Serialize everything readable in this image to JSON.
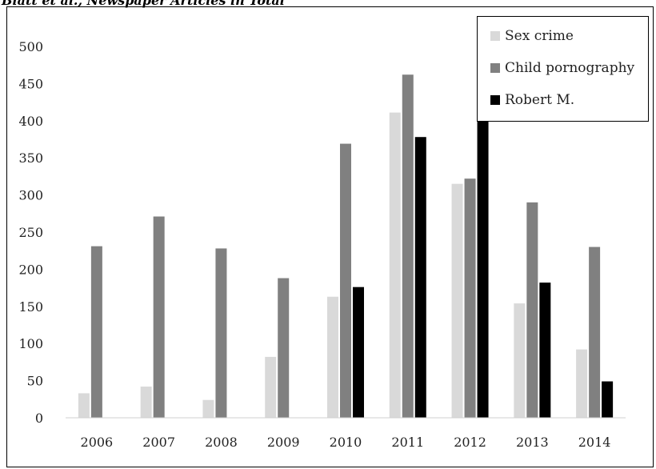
{
  "caption": "Blatt et al., Newspaper Articles in Total",
  "chart_data": {
    "type": "bar",
    "categories": [
      "2006",
      "2007",
      "2008",
      "2009",
      "2010",
      "2011",
      "2012",
      "2013",
      "2014"
    ],
    "series": [
      {
        "name": "Sex crime",
        "color": "#d9d9d9",
        "values": [
          33,
          42,
          24,
          82,
          163,
          411,
          315,
          154,
          92
        ]
      },
      {
        "name": "Child pornography",
        "color": "#808080",
        "values": [
          231,
          271,
          228,
          188,
          369,
          462,
          322,
          290,
          230
        ]
      },
      {
        "name": "Robert M.",
        "color": "#000000",
        "values": [
          0,
          0,
          0,
          0,
          176,
          378,
          485,
          182,
          49
        ]
      }
    ],
    "ylim": [
      0,
      500
    ],
    "yticks": [
      "0",
      "50",
      "100",
      "150",
      "200",
      "250",
      "300",
      "350",
      "400",
      "450",
      "500"
    ],
    "legend_position": "top-right",
    "grid": false
  }
}
